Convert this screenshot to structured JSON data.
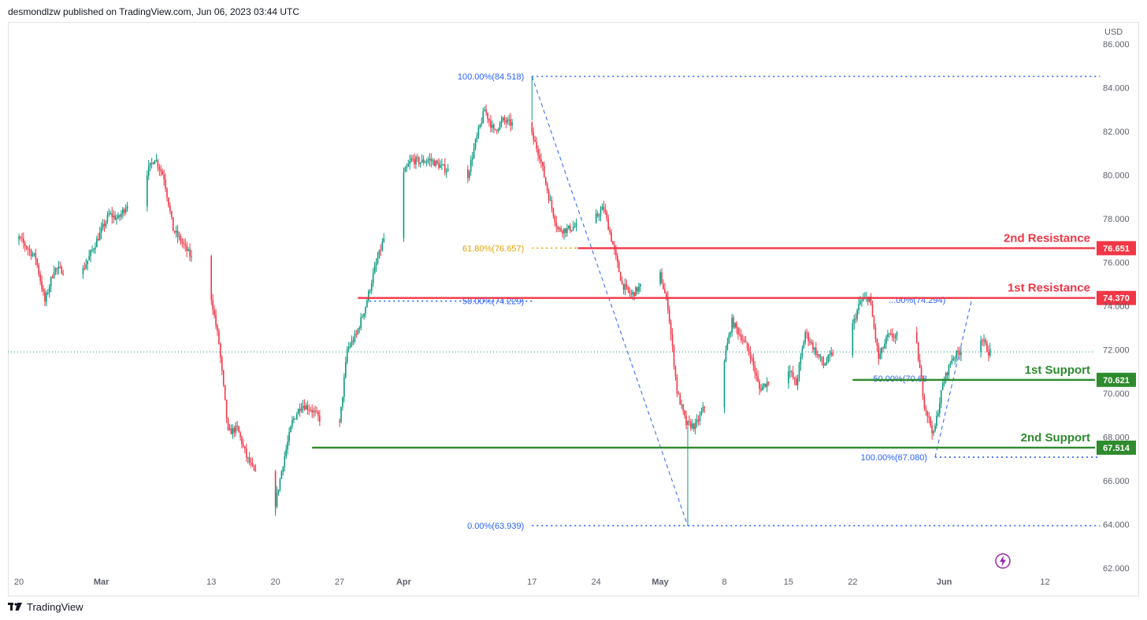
{
  "header": {
    "text": "desmondlzw published on TradingView.com, Jun 06, 2023 03:44 UTC"
  },
  "footer": {
    "brand": "TradingView"
  },
  "colors": {
    "up": "#089981",
    "down": "#f23645",
    "resistance": "#f23645",
    "support": "#2e8b2e",
    "fib_blue": "#2962ff",
    "fib_orange": "#e6a100",
    "price_line": "#089981"
  },
  "chart_data": {
    "type": "candlestick",
    "currency": "USD",
    "ylim": [
      62.0,
      86.0
    ],
    "y_ticks": [
      "86.000",
      "84.000",
      "82.000",
      "80.000",
      "78.000",
      "76.000",
      "74.000",
      "72.000",
      "70.000",
      "68.000",
      "66.000",
      "64.000",
      "62.000"
    ],
    "x_ticks": [
      {
        "label": "20",
        "date": "2023-02-20"
      },
      {
        "label": "Mar",
        "date": "2023-03-01"
      },
      {
        "label": "13",
        "date": "2023-03-13"
      },
      {
        "label": "20",
        "date": "2023-03-20"
      },
      {
        "label": "27",
        "date": "2023-03-27"
      },
      {
        "label": "Apr",
        "date": "2023-04-03"
      },
      {
        "label": "17",
        "date": "2023-04-17"
      },
      {
        "label": "24",
        "date": "2023-04-24"
      },
      {
        "label": "May",
        "date": "2023-05-01"
      },
      {
        "label": "8",
        "date": "2023-05-08"
      },
      {
        "label": "15",
        "date": "2023-05-15"
      },
      {
        "label": "22",
        "date": "2023-05-22"
      },
      {
        "label": "Jun",
        "date": "2023-06-01"
      },
      {
        "label": "12",
        "date": "2023-06-12"
      }
    ],
    "price_path": [
      [
        "2023-02-17",
        76.9
      ],
      [
        "2023-02-20",
        77.2
      ],
      [
        "2023-02-22",
        76.2
      ],
      [
        "2023-02-23",
        74.2
      ],
      [
        "2023-02-24",
        75.7
      ],
      [
        "2023-02-27",
        75.5
      ],
      [
        "2023-03-01",
        77.3
      ],
      [
        "2023-03-02",
        78.2
      ],
      [
        "2023-03-03",
        78.0
      ],
      [
        "2023-03-06",
        80.0
      ],
      [
        "2023-03-07",
        80.8
      ],
      [
        "2023-03-08",
        79.9
      ],
      [
        "2023-03-09",
        77.5
      ],
      [
        "2023-03-10",
        76.9
      ],
      [
        "2023-03-13",
        74.8
      ],
      [
        "2023-03-14",
        72.3
      ],
      [
        "2023-03-15",
        68.2
      ],
      [
        "2023-03-16",
        68.4
      ],
      [
        "2023-03-17",
        67.1
      ],
      [
        "2023-03-20",
        64.6
      ],
      [
        "2023-03-21",
        66.8
      ],
      [
        "2023-03-22",
        68.7
      ],
      [
        "2023-03-23",
        69.5
      ],
      [
        "2023-03-24",
        69.3
      ],
      [
        "2023-03-27",
        67.9
      ],
      [
        "2023-03-28",
        72.0
      ],
      [
        "2023-03-29",
        72.7
      ],
      [
        "2023-03-30",
        74.0
      ],
      [
        "2023-03-31",
        75.7
      ],
      [
        "2023-04-03",
        79.9
      ],
      [
        "2023-04-04",
        80.7
      ],
      [
        "2023-04-05",
        80.6
      ],
      [
        "2023-04-06",
        80.7
      ],
      [
        "2023-04-10",
        79.7
      ],
      [
        "2023-04-11",
        81.5
      ],
      [
        "2023-04-12",
        83.0
      ],
      [
        "2023-04-13",
        82.0
      ],
      [
        "2023-04-14",
        82.5
      ],
      [
        "2023-04-17",
        82.0
      ],
      [
        "2023-04-18",
        80.9
      ],
      [
        "2023-04-19",
        79.0
      ],
      [
        "2023-04-20",
        77.5
      ],
      [
        "2023-04-21",
        77.5
      ],
      [
        "2023-04-24",
        78.0
      ],
      [
        "2023-04-25",
        78.5
      ],
      [
        "2023-04-26",
        76.8
      ],
      [
        "2023-04-27",
        75.0
      ],
      [
        "2023-04-28",
        74.5
      ],
      [
        "2023-05-01",
        75.7
      ],
      [
        "2023-05-02",
        74.0
      ],
      [
        "2023-05-03",
        70.1
      ],
      [
        "2023-05-04",
        68.6
      ],
      [
        "2023-05-05",
        68.5
      ],
      [
        "2023-05-08",
        71.2
      ],
      [
        "2023-05-09",
        73.3
      ],
      [
        "2023-05-10",
        72.6
      ],
      [
        "2023-05-11",
        71.8
      ],
      [
        "2023-05-12",
        70.2
      ],
      [
        "2023-05-15",
        71.3
      ],
      [
        "2023-05-16",
        70.4
      ],
      [
        "2023-05-17",
        72.8
      ],
      [
        "2023-05-18",
        72.0
      ],
      [
        "2023-05-19",
        71.3
      ],
      [
        "2023-05-22",
        72.9
      ],
      [
        "2023-05-23",
        74.2
      ],
      [
        "2023-05-24",
        74.4
      ],
      [
        "2023-05-25",
        71.6
      ],
      [
        "2023-05-26",
        72.6
      ],
      [
        "2023-05-29",
        72.7
      ],
      [
        "2023-05-30",
        69.5
      ],
      [
        "2023-05-31",
        68.1
      ],
      [
        "2023-06-01",
        70.4
      ],
      [
        "2023-06-02",
        71.6
      ],
      [
        "2023-06-05",
        72.7
      ],
      [
        "2023-06-06",
        71.9
      ]
    ],
    "last_price": 71.9,
    "levels": [
      {
        "name": "2nd Resistance",
        "value": 76.651,
        "tag": "76.651",
        "kind": "resistance",
        "start": "2023-04-22"
      },
      {
        "name": "1st Resistance",
        "value": 74.37,
        "tag": "74.370",
        "kind": "resistance",
        "start": "2023-03-29"
      },
      {
        "name": "1st Support",
        "value": 70.621,
        "tag": "70.621",
        "kind": "support",
        "start": "2023-05-22"
      },
      {
        "name": "2nd Support",
        "value": 67.514,
        "tag": "67.514",
        "kind": "support",
        "start": "2023-03-24"
      }
    ],
    "fib_labels": [
      {
        "text": "100.00%(84.518)",
        "value": 84.518,
        "x": "2023-04-17",
        "color": "blue"
      },
      {
        "text": "61.80%(76.657)",
        "value": 76.657,
        "x": "2023-04-17",
        "color": "orange"
      },
      {
        "text": "50.00%(74.229)",
        "value": 74.229,
        "x": "2023-04-17",
        "color": "blue"
      },
      {
        "text": "0.00%(63.939)",
        "value": 63.939,
        "x": "2023-04-17",
        "color": "blue"
      },
      {
        "text": "50.00%(70.68",
        "value": 70.68,
        "x": "2023-05-31",
        "color": "blue"
      },
      {
        "text": "100.00%(67.080)",
        "value": 67.08,
        "x": "2023-05-31",
        "color": "blue"
      },
      {
        "text": "...00%(74.294)",
        "value": 74.294,
        "x": "2023-06-02",
        "color": "blue"
      }
    ],
    "fib_lines": [
      {
        "value": 84.518,
        "from": "2023-04-17",
        "to": "2023-06-18",
        "color": "blue"
      },
      {
        "value": 76.657,
        "from": "2023-04-17",
        "to": "2023-04-22",
        "color": "orange"
      },
      {
        "value": 74.229,
        "from": "2023-04-17",
        "to": "2023-03-30",
        "color": "blue"
      },
      {
        "value": 63.939,
        "from": "2023-04-17",
        "to": "2023-06-18",
        "color": "blue"
      },
      {
        "value": 67.08,
        "from": "2023-05-31",
        "to": "2023-06-18",
        "color": "blue"
      }
    ],
    "trend_lines": [
      {
        "from": [
          "2023-04-17",
          84.518
        ],
        "to": [
          "2023-05-04",
          63.939
        ]
      },
      {
        "from": [
          "2023-05-31",
          67.08
        ],
        "to": [
          "2023-06-04",
          74.294
        ]
      }
    ]
  }
}
